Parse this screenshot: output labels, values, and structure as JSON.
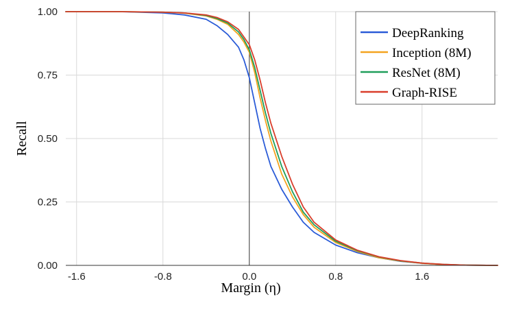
{
  "chart_data": {
    "type": "line",
    "title": "",
    "xlabel": "Margin (η)",
    "ylabel": "Recall",
    "xlim": [
      -1.7,
      2.3
    ],
    "ylim": [
      0,
      1
    ],
    "x_ticks": [
      -1.6,
      -0.8,
      0.0,
      0.8,
      1.6
    ],
    "x_tick_labels": [
      "-1.6",
      "-0.8",
      "0.0",
      "0.8",
      "1.6"
    ],
    "y_ticks": [
      0,
      0.25,
      0.5,
      0.75,
      1.0
    ],
    "y_tick_labels": [
      "0.00",
      "0.25",
      "0.50",
      "0.75",
      "1.00"
    ],
    "grid": true,
    "legend_position": "top-right",
    "series": [
      {
        "name": "DeepRanking",
        "color": "#2a5bd7",
        "x": [
          -1.7,
          -1.2,
          -0.8,
          -0.6,
          -0.4,
          -0.3,
          -0.2,
          -0.1,
          -0.05,
          0.0,
          0.05,
          0.1,
          0.15,
          0.2,
          0.3,
          0.4,
          0.5,
          0.6,
          0.8,
          1.0,
          1.2,
          1.4,
          1.6,
          1.8,
          2.0,
          2.3
        ],
        "y": [
          1.0,
          1.0,
          0.995,
          0.987,
          0.97,
          0.945,
          0.91,
          0.86,
          0.81,
          0.74,
          0.64,
          0.54,
          0.46,
          0.39,
          0.3,
          0.23,
          0.17,
          0.13,
          0.08,
          0.05,
          0.03,
          0.016,
          0.008,
          0.003,
          0.001,
          0.0
        ]
      },
      {
        "name": "Inception (8M)",
        "color": "#f4a31f",
        "x": [
          -1.7,
          -1.2,
          -0.8,
          -0.6,
          -0.4,
          -0.3,
          -0.2,
          -0.1,
          -0.05,
          0.0,
          0.05,
          0.1,
          0.15,
          0.2,
          0.3,
          0.4,
          0.5,
          0.6,
          0.8,
          1.0,
          1.2,
          1.4,
          1.6,
          1.8,
          2.0,
          2.3
        ],
        "y": [
          1.0,
          1.0,
          0.998,
          0.994,
          0.983,
          0.97,
          0.95,
          0.91,
          0.88,
          0.84,
          0.76,
          0.66,
          0.57,
          0.49,
          0.36,
          0.27,
          0.2,
          0.15,
          0.09,
          0.055,
          0.03,
          0.017,
          0.008,
          0.003,
          0.001,
          0.0
        ]
      },
      {
        "name": "ResNet (8M)",
        "color": "#1e9e5a",
        "x": [
          -1.7,
          -1.2,
          -0.8,
          -0.6,
          -0.4,
          -0.3,
          -0.2,
          -0.1,
          -0.05,
          0.0,
          0.05,
          0.1,
          0.15,
          0.2,
          0.3,
          0.4,
          0.5,
          0.6,
          0.8,
          1.0,
          1.2,
          1.4,
          1.6,
          1.8,
          2.0,
          2.3
        ],
        "y": [
          1.0,
          1.0,
          0.998,
          0.995,
          0.985,
          0.973,
          0.955,
          0.92,
          0.89,
          0.85,
          0.78,
          0.69,
          0.6,
          0.52,
          0.39,
          0.29,
          0.21,
          0.16,
          0.095,
          0.058,
          0.033,
          0.018,
          0.009,
          0.004,
          0.001,
          0.0
        ]
      },
      {
        "name": "Graph-RISE",
        "color": "#d93d2a",
        "x": [
          -1.7,
          -1.2,
          -0.8,
          -0.6,
          -0.4,
          -0.3,
          -0.2,
          -0.1,
          -0.05,
          0.0,
          0.05,
          0.1,
          0.15,
          0.2,
          0.3,
          0.4,
          0.5,
          0.6,
          0.8,
          1.0,
          1.2,
          1.4,
          1.6,
          1.8,
          2.0,
          2.3
        ],
        "y": [
          1.0,
          1.0,
          0.998,
          0.995,
          0.987,
          0.977,
          0.96,
          0.93,
          0.9,
          0.87,
          0.81,
          0.73,
          0.64,
          0.56,
          0.43,
          0.32,
          0.23,
          0.17,
          0.1,
          0.06,
          0.034,
          0.019,
          0.009,
          0.004,
          0.001,
          0.0
        ]
      }
    ]
  }
}
